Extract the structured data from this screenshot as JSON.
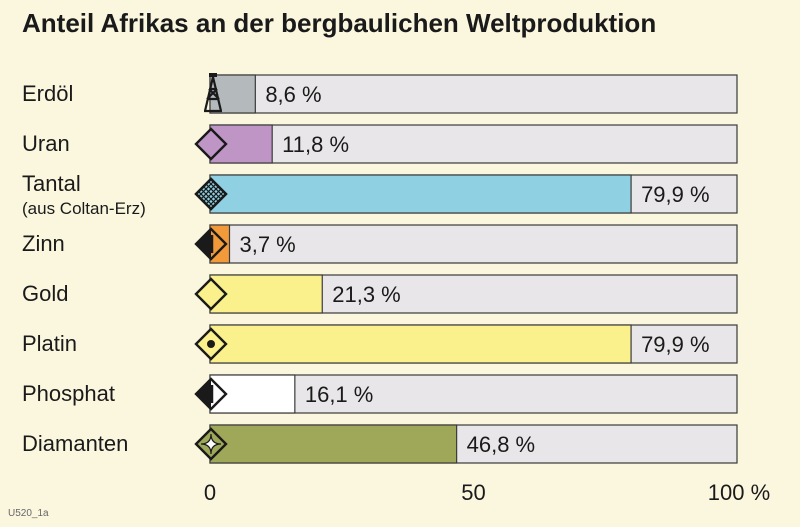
{
  "chart_data": {
    "type": "bar",
    "orientation": "horizontal",
    "title": "Anteil Afrikas an der bergbaulichen Weltproduktion",
    "categories": [
      "Erdöl",
      "Uran",
      "Tantal",
      "Zinn",
      "Gold",
      "Platin",
      "Phosphat",
      "Diamanten"
    ],
    "category_notes": [
      "",
      "",
      "(aus Coltan-Erz)",
      "",
      "",
      "",
      "",
      ""
    ],
    "values": [
      8.6,
      11.8,
      79.9,
      3.7,
      21.3,
      79.9,
      16.1,
      46.8
    ],
    "value_labels": [
      "8,6 %",
      "11,8 %",
      "79,9 %",
      "3,7 %",
      "21,3 %",
      "79,9 %",
      "16,1 %",
      "46,8 %"
    ],
    "bar_colors": [
      "#b4b9bc",
      "#bf95c6",
      "#8fd0e3",
      "#f29a3a",
      "#fbf18c",
      "#fbf18c",
      "#ffffff",
      "#9ea858"
    ],
    "track_color": "#e8e6e8",
    "icons": [
      "oil-derrick-icon",
      "uranium-diamond-icon",
      "tantalum-diamond-icon",
      "tin-diamond-icon",
      "gold-diamond-icon",
      "platinum-diamond-icon",
      "phosphate-diamond-icon",
      "diamond-sparkle-icon"
    ],
    "xlim": [
      0,
      100
    ],
    "xticks": [
      0,
      50,
      100
    ],
    "xtick_labels": [
      "0",
      "50",
      "100 %"
    ]
  },
  "footer": "U520_1a"
}
